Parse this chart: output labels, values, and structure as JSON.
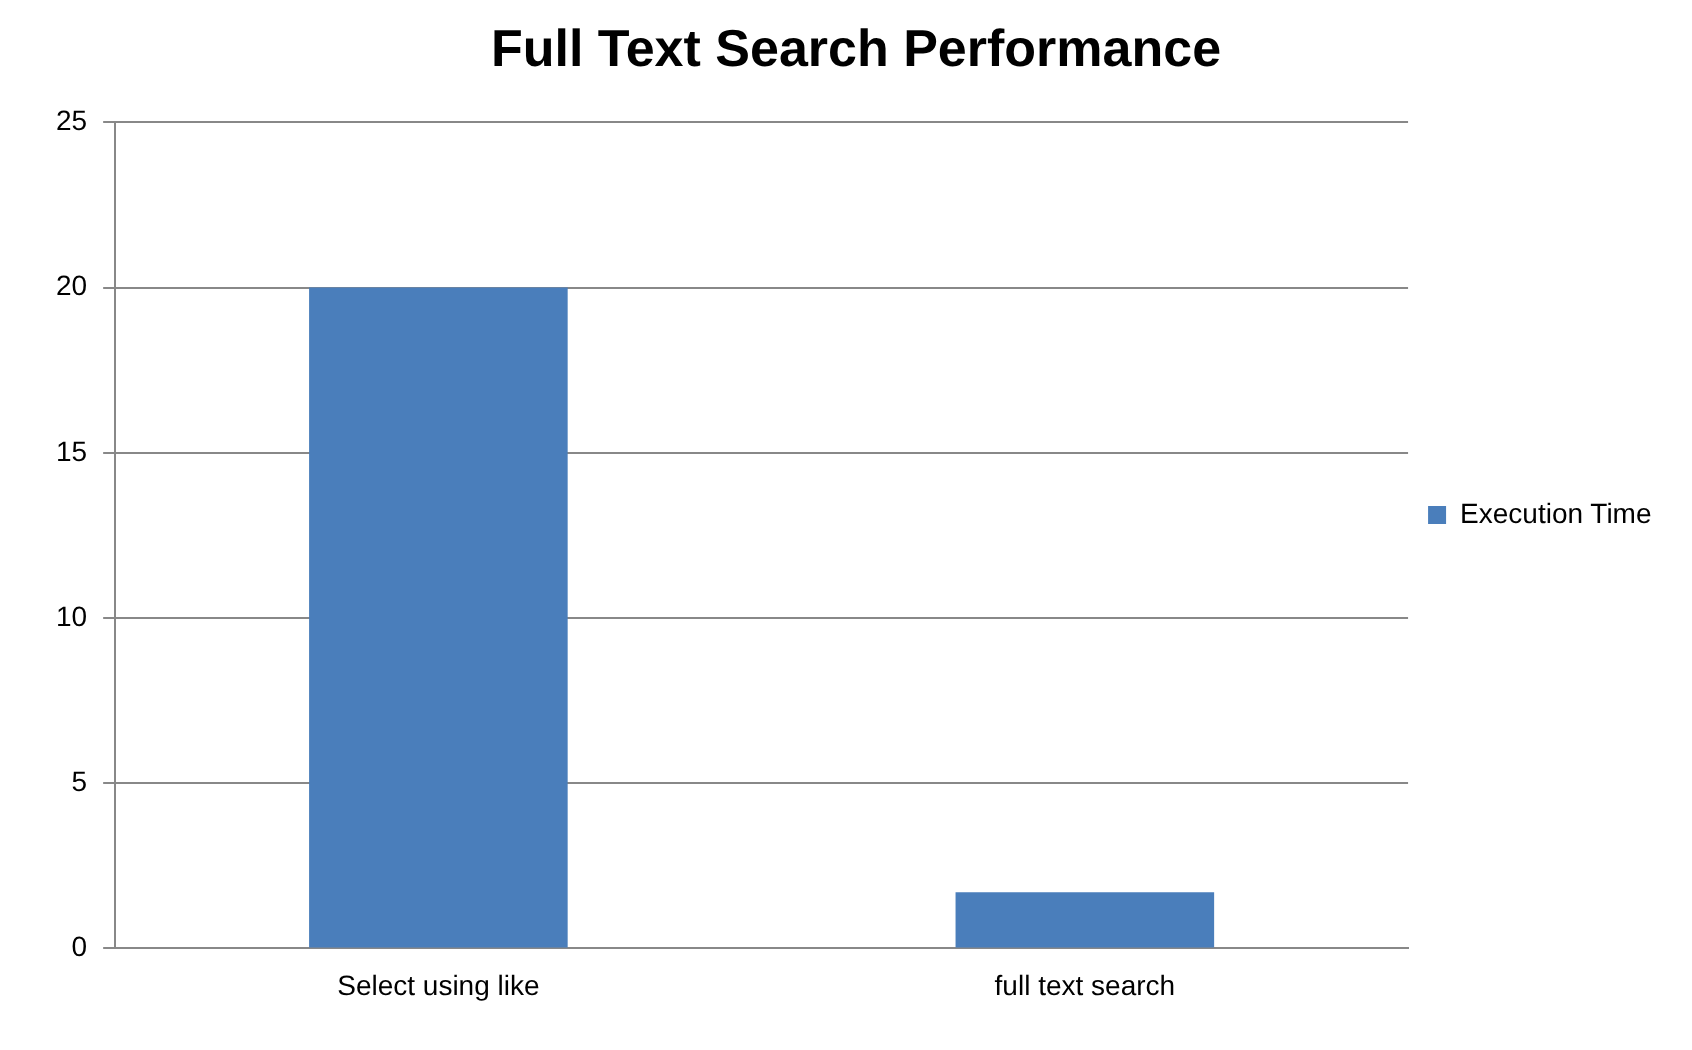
{
  "chart_data": {
    "type": "bar",
    "title": "Full Text Search Performance",
    "categories": [
      "Select using like",
      "full text search"
    ],
    "series": [
      {
        "name": "Execution Time",
        "color": "#4a7ebb",
        "values": [
          20,
          1.7
        ]
      }
    ],
    "ylim": [
      0,
      25
    ],
    "yticks": [
      0,
      5,
      10,
      15,
      20,
      25
    ],
    "grid": "y",
    "legend": "right"
  }
}
